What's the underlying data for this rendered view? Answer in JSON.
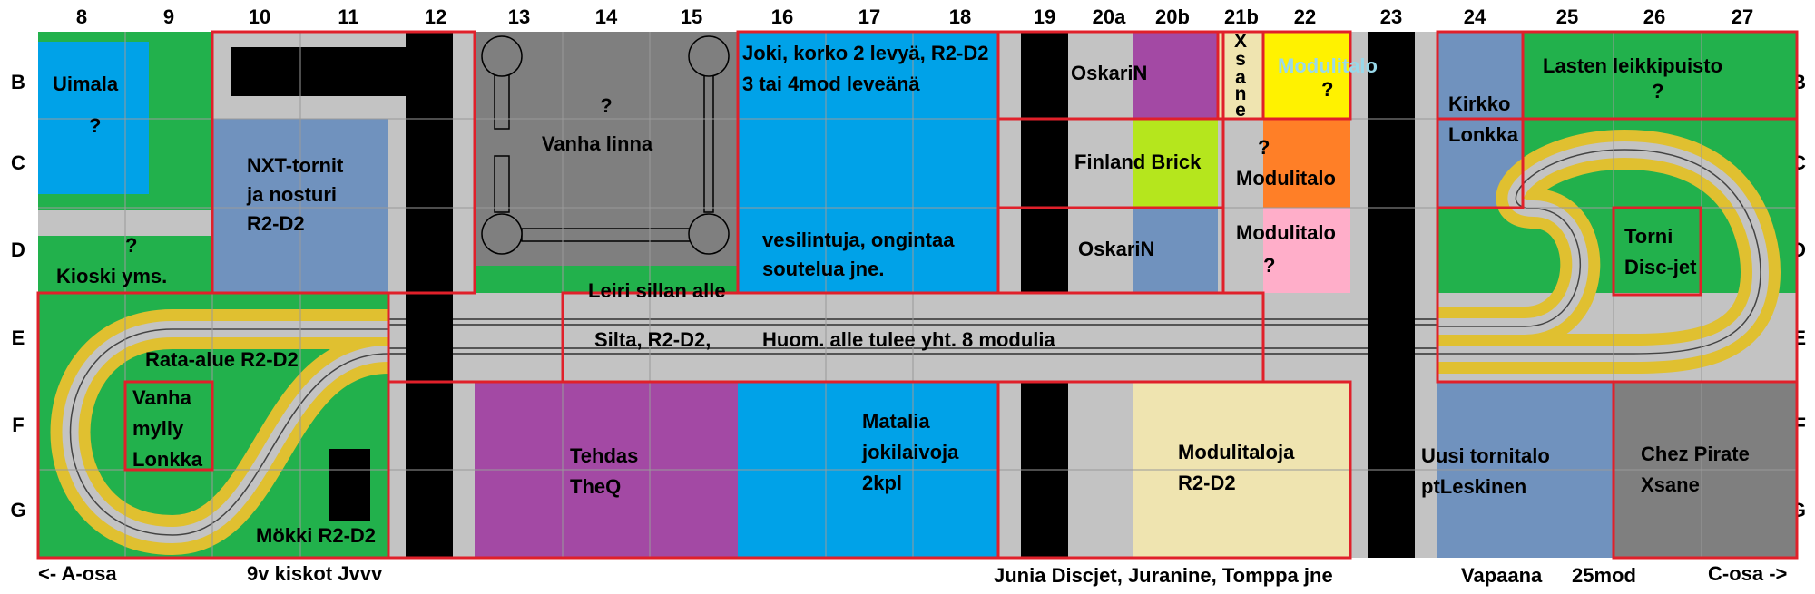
{
  "columns": [
    "8",
    "9",
    "10",
    "11",
    "12",
    "13",
    "14",
    "15",
    "16",
    "17",
    "18",
    "19",
    "20a",
    "20b",
    "21b",
    "22",
    "23",
    "24",
    "25",
    "26",
    "27"
  ],
  "rows": [
    "B",
    "C",
    "D",
    "E",
    "F",
    "G"
  ],
  "colors": {
    "green": "#22b14c",
    "blue": "#00a2e8",
    "steel": "#7092be",
    "gray": "#7f7f7f",
    "light": "#c3c3c3",
    "purple": "#a349a4",
    "yellow": "#fff200",
    "orange": "#ff7f27",
    "pink": "#ffaec9",
    "lime": "#b5e61d",
    "cream": "#efe4b0",
    "black": "#000000",
    "track": "#e0c030",
    "border": "#e0202a"
  },
  "zones": {
    "uimala": "Uimala",
    "uimala_q": "?",
    "kioski_q": "?",
    "kioski": "Kioski yms.",
    "nxt_1": "NXT-tornit",
    "nxt_2": "ja nosturi",
    "nxt_3": "R2-D2",
    "linna_q": "?",
    "linna": "Vanha linna",
    "joki_1": "Joki, korko 2 levyä, R2-D2",
    "joki_2": "3 tai 4mod leveänä",
    "vesi_1": "vesilintuja, ongintaa",
    "vesi_2": "soutelua jne.",
    "leiri": "Leiri sillan alle",
    "oskari_b": "OskariN",
    "finland_brick": "Finland Brick",
    "oskari_d": "OskariN",
    "xsane_vertical": [
      "X",
      "s",
      "a",
      "n",
      "e"
    ],
    "modulitalo_b": "Modulitalo",
    "modulitalo_b_q": "?",
    "modulitalo_c_q": "?",
    "modulitalo_c": "Modulitalo",
    "modulitalo_d": "Modulitalo",
    "modulitalo_d_q": "?",
    "kirkko_1": "Kirkko",
    "kirkko_2": "Lonkka",
    "leikkipuisto": "Lasten leikkipuisto",
    "leikkipuisto_q": "?",
    "torni_1": "Torni",
    "torni_2": "Disc-jet",
    "rata_alue": "Rata-alue R2-D2",
    "silta": "Silta, R2-D2,",
    "huom": "Huom. alle tulee yht. 8 modulia",
    "mylly_1": "Vanha",
    "mylly_2": "mylly",
    "mylly_3": "Lonkka",
    "mokki": "Mökki R2-D2",
    "tehdas_1": "Tehdas",
    "tehdas_2": "TheQ",
    "matalia_1": "Matalia",
    "matalia_2": "jokilaivoja",
    "matalia_3": "2kpl",
    "modulitaloja_1": "Modulitaloja",
    "modulitaloja_2": "R2-D2",
    "tornitalo_1": "Uusi tornitalo",
    "tornitalo_2": "ptLeskinen",
    "pirate_1": "Chez Pirate",
    "pirate_2": "Xsane"
  },
  "footer": {
    "a_osa": "<- A-osa",
    "kiskot": "9v kiskot Jvvv",
    "junia": "Junia Discjet, Juranine, Tomppa jne",
    "vapaana": "Vapaana",
    "mod25": "25mod",
    "c_osa": "C-osa ->"
  }
}
